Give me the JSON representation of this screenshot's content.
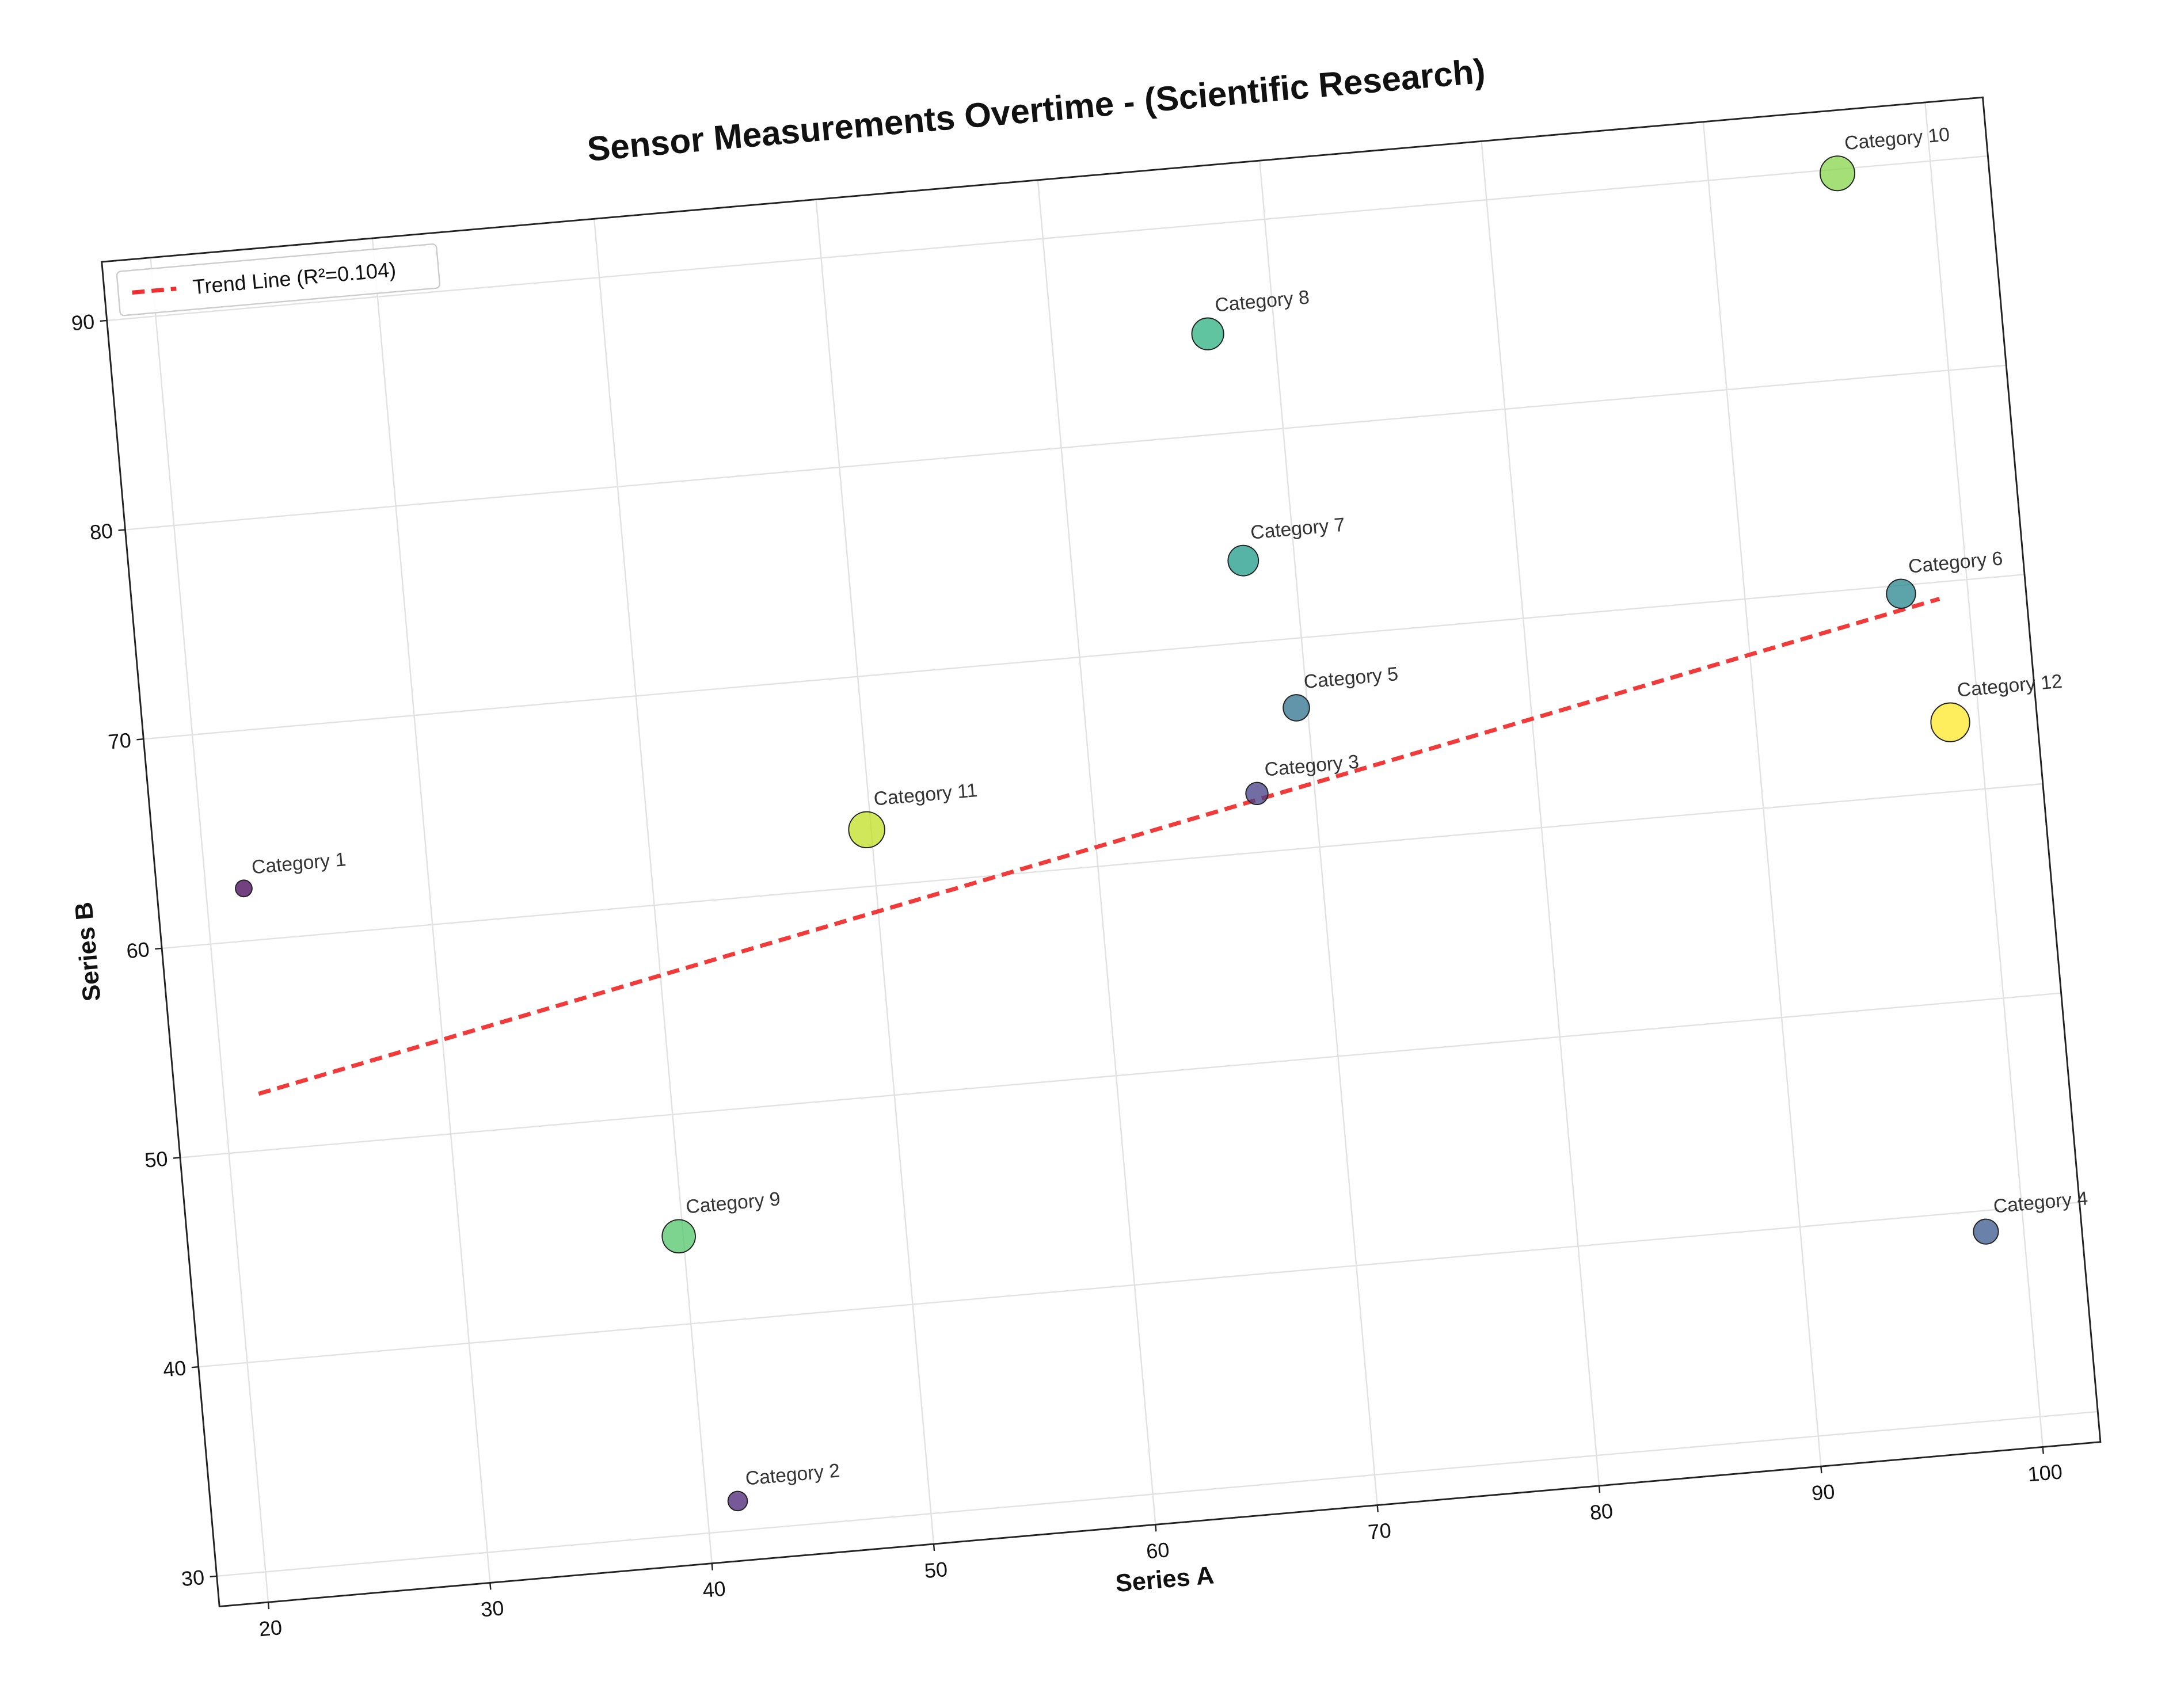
{
  "chart_data": {
    "type": "scatter",
    "title": "Sensor Measurements Overtime - (Scientific Research)",
    "x_label": "Series A",
    "y_label": "Series B",
    "xlim": [
      17.8,
      102.6
    ],
    "ylim": [
      28.55,
      92.8
    ],
    "xticks": [
      20,
      30,
      40,
      50,
      60,
      70,
      80,
      90,
      100
    ],
    "yticks": [
      30,
      40,
      50,
      60,
      70,
      80,
      90
    ],
    "grid": true,
    "legend": "upper left",
    "labels": [
      "Category 1",
      "Category 2",
      "Category 3",
      "Category 4",
      "Category 5",
      "Category 6",
      "Category 7",
      "Category 8",
      "Category 9",
      "Category 10",
      "Category 11",
      "Category 12"
    ],
    "x": [
      21.7,
      41.4,
      67.4,
      98.3,
      69.5,
      97.0,
      67.7,
      67.0,
      39.8,
      95.8,
      49.8,
      98.7
    ],
    "values": [
      62.5,
      31.4,
      62.8,
      39.0,
      66.7,
      69.6,
      73.9,
      84.8,
      44.2,
      89.8,
      62.7,
      63.3
    ],
    "sizes": [
      6,
      7,
      8,
      9,
      9.5,
      10.5,
      11,
      11.5,
      12,
      12.5,
      13,
      14
    ],
    "colors": [
      "#440154",
      "#482173",
      "#433e85",
      "#38588c",
      "#2d708e",
      "#25858e",
      "#1e9b8a",
      "#2ab07f",
      "#52c569",
      "#86d549",
      "#c2df23",
      "#fde725"
    ],
    "trend": {
      "name": "Trend Line (R²=0.104)",
      "color": "#f03030",
      "x": [
        21.56,
        98.7
      ],
      "values": [
        52.7,
        69.2
      ]
    }
  }
}
